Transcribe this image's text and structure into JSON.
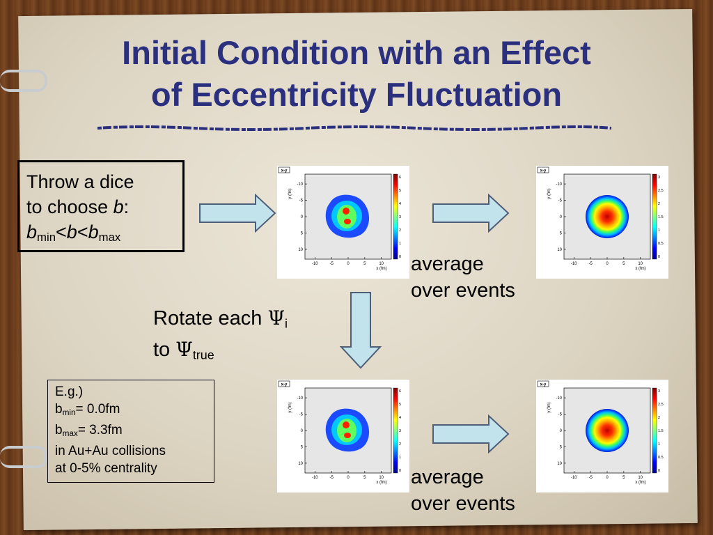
{
  "title": {
    "line1": "Initial Condition with an Effect",
    "line2": "of Eccentricity Fluctuation"
  },
  "dice_box": {
    "line1": "Throw a dice",
    "line2_text": "to choose ",
    "line2_var": "b",
    "line2_end": ":",
    "b": "b",
    "sub_min": "min",
    "lt": "<",
    "sub_max": "max"
  },
  "labels": {
    "average": "average",
    "over_events": "over events",
    "rotate_text": "Rotate each ",
    "psi_symbol": "Ψ",
    "psi_sub_i": "i",
    "to_text": "to ",
    "psi_sub_true": "true"
  },
  "example_box": {
    "line1": "E.g.)",
    "b": "b",
    "sub_min": "min",
    "min_value": "= 0.0fm",
    "sub_max": "max",
    "max_value": "= 3.3fm",
    "line4": "in Au+Au collisions",
    "line5": "at 0-5% centrality"
  },
  "plots": {
    "tag": "x-y",
    "xlabel": "x (fm)",
    "ylabel": "y (fm)",
    "ticks": [
      "-10",
      "-5",
      "0",
      "5",
      "10"
    ],
    "yticks": [
      "10",
      "5",
      "0",
      "-5",
      "-10"
    ],
    "event_scale": [
      "0",
      "1",
      "2",
      "3",
      "4",
      "5",
      "6"
    ],
    "avg_scale": [
      "0",
      "0.5",
      "1",
      "1.5",
      "2",
      "2.5",
      "3"
    ]
  },
  "colors": {
    "title": "#2a2f7e",
    "arrow_fill": "#c3e3ec",
    "arrow_stroke": "#4d5f78"
  }
}
